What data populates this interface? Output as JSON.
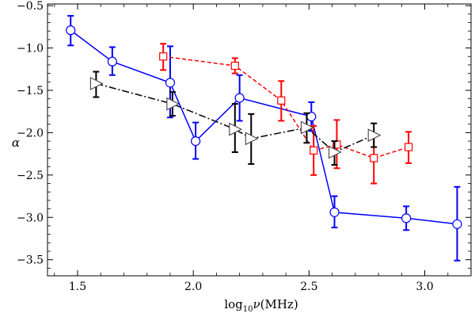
{
  "chart_data": {
    "type": "scatter",
    "title": "",
    "xlabel": {
      "base": "log",
      "sub": "10",
      "var": "ν",
      "unit": "(MHz)"
    },
    "ylabel": "α",
    "xlim": [
      1.37,
      3.2
    ],
    "ylim": [
      -3.69,
      -0.48
    ],
    "xticks": [
      1.5,
      2.0,
      2.5,
      3.0
    ],
    "xtick_labels": [
      "1.5",
      "2.0",
      "2.5",
      "3.0"
    ],
    "yticks": [
      -0.5,
      -1.0,
      -1.5,
      -2.0,
      -2.5,
      -3.0,
      -3.5
    ],
    "ytick_labels": [
      "−0.5",
      "−1.0",
      "−1.5",
      "−2.0",
      "−2.5",
      "−3.0",
      "−3.5"
    ],
    "grid": false,
    "legend": null,
    "series": [
      {
        "color": "#0000ff",
        "marker": "circle",
        "line_style": "solid",
        "points": [
          {
            "x": 1.47,
            "y": -0.79,
            "ylo": -0.97,
            "yhi": -0.62
          },
          {
            "x": 1.65,
            "y": -1.16,
            "ylo": -1.32,
            "yhi": -0.99
          },
          {
            "x": 1.9,
            "y": -1.41,
            "ylo": -1.82,
            "yhi": -0.98
          },
          {
            "x": 2.01,
            "y": -2.1,
            "ylo": -2.31,
            "yhi": -1.88
          },
          {
            "x": 2.2,
            "y": -1.59,
            "ylo": -1.86,
            "yhi": -1.32
          },
          {
            "x": 2.51,
            "y": -1.81,
            "ylo": -1.98,
            "yhi": -1.64
          },
          {
            "x": 2.61,
            "y": -2.94,
            "ylo": -3.12,
            "yhi": -2.75
          },
          {
            "x": 2.92,
            "y": -3.01,
            "ylo": -3.15,
            "yhi": -2.87
          },
          {
            "x": 3.14,
            "y": -3.08,
            "ylo": -3.51,
            "yhi": -2.64
          }
        ]
      },
      {
        "color": "#ff0000",
        "marker": "square",
        "line_style": "dashed",
        "points": [
          {
            "x": 1.87,
            "y": -1.1,
            "ylo": -1.26,
            "yhi": -0.95
          },
          {
            "x": 2.18,
            "y": -1.21,
            "ylo": -1.3,
            "yhi": -1.12
          },
          {
            "x": 2.38,
            "y": -1.62,
            "ylo": -1.86,
            "yhi": -1.39
          },
          {
            "x": 2.52,
            "y": -2.21,
            "ylo": -2.5,
            "yhi": -1.92
          },
          {
            "x": 2.62,
            "y": -2.14,
            "ylo": -2.42,
            "yhi": -1.85
          },
          {
            "x": 2.78,
            "y": -2.3,
            "ylo": -2.6,
            "yhi": -2.01
          },
          {
            "x": 2.93,
            "y": -2.17,
            "ylo": -2.36,
            "yhi": -1.99
          }
        ]
      },
      {
        "color": "#000000",
        "marker": "triangle-right",
        "line_style": "dashdot",
        "points": [
          {
            "x": 1.58,
            "y": -1.42,
            "ylo": -1.58,
            "yhi": -1.28
          },
          {
            "x": 1.91,
            "y": -1.66,
            "ylo": -1.8,
            "yhi": -1.52
          },
          {
            "x": 2.18,
            "y": -1.96,
            "ylo": -2.23,
            "yhi": -1.66
          },
          {
            "x": 2.25,
            "y": -2.07,
            "ylo": -2.37,
            "yhi": -1.78
          },
          {
            "x": 2.49,
            "y": -1.94,
            "ylo": -2.12,
            "yhi": -1.77
          },
          {
            "x": 2.61,
            "y": -2.23,
            "ylo": -2.38,
            "yhi": -2.1
          },
          {
            "x": 2.78,
            "y": -2.03,
            "ylo": -2.17,
            "yhi": -1.89
          }
        ]
      }
    ]
  }
}
